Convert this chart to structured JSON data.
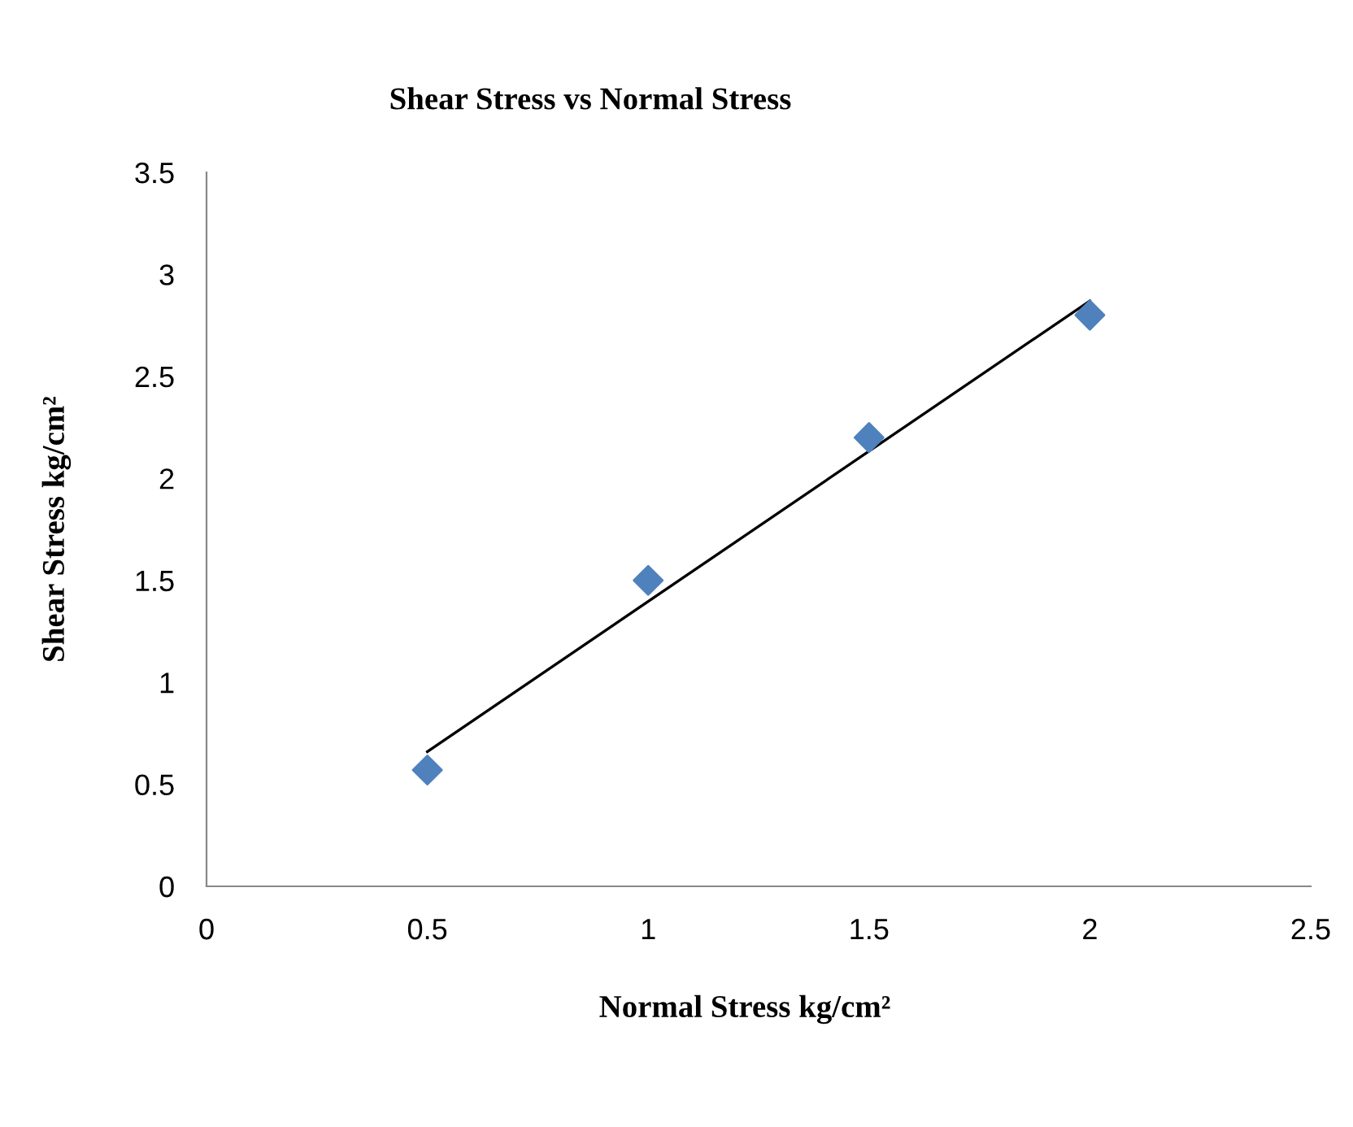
{
  "chart_data": {
    "type": "scatter",
    "title": "Shear Stress vs Normal Stress",
    "xlabel": "Normal Stress kg/cm²",
    "ylabel": "Shear Stress kg/cm²",
    "x": [
      0.5,
      1,
      1.5,
      2
    ],
    "series": [
      {
        "color": "#4f81bd",
        "marker": "diamond",
        "values": [
          0.57,
          1.5,
          2.2,
          2.8
        ]
      },
      {
        "type": "line",
        "color": "#000000",
        "marker": "none",
        "x": [
          0.5,
          2
        ],
        "values": [
          0.66,
          2.87
        ]
      }
    ],
    "xlim": [
      0,
      2.5
    ],
    "xticks": [
      0,
      0.5,
      1,
      1.5,
      2,
      2.5
    ],
    "ylim": [
      0,
      3.5
    ],
    "yticks": [
      0,
      0.5,
      1,
      1.5,
      2,
      2.5,
      3,
      3.5
    ],
    "grid": false,
    "legend": false
  }
}
